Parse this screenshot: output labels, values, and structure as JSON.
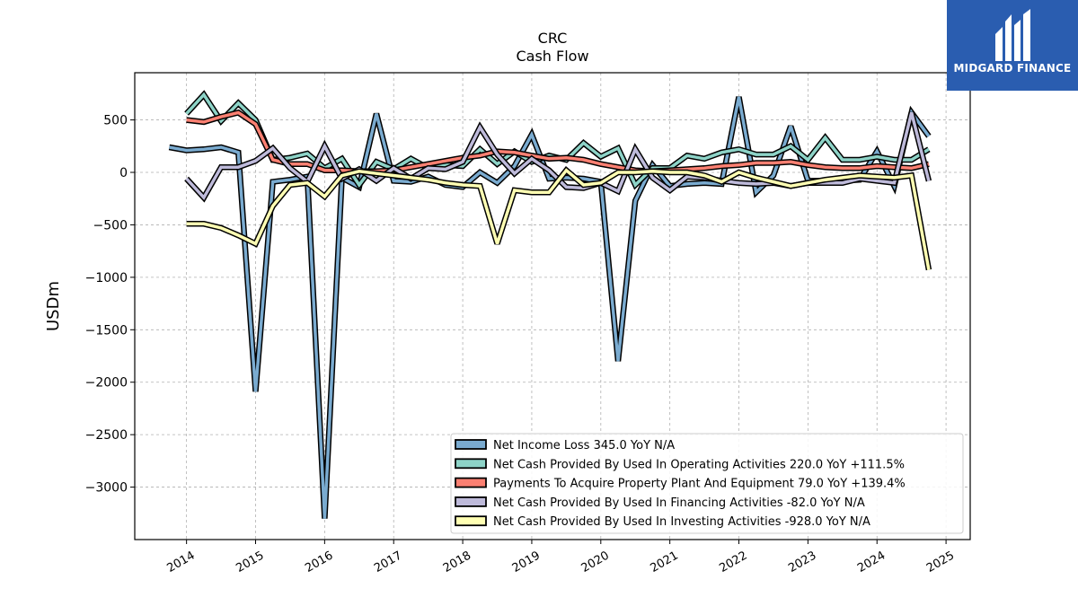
{
  "chart_data": {
    "type": "line",
    "title": "CRC",
    "subtitle": "Cash Flow",
    "xlabel": "",
    "ylabel": "USDm",
    "xlim": [
      2013.25,
      2025.35
    ],
    "ylim": [
      -3500,
      950
    ],
    "grid": true,
    "legend_placement": "lower-right",
    "x_ticks": [
      "2014",
      "2015",
      "2016",
      "2017",
      "2018",
      "2019",
      "2020",
      "2021",
      "2022",
      "2023",
      "2024",
      "2025"
    ],
    "y_ticks": [
      500,
      0,
      -500,
      -1000,
      -1500,
      -2000,
      -2500,
      -3000
    ],
    "y_tick_labels": [
      "500",
      "0",
      "−500",
      "−1000",
      "−1500",
      "−2000",
      "−2500",
      "−3000"
    ],
    "series": [
      {
        "name": "Net Income Loss  345.0 YoY N/A",
        "color": "#7aabd0",
        "x": [
          2013.75,
          2014.0,
          2014.25,
          2014.5,
          2014.75,
          2015.0,
          2015.25,
          2015.5,
          2015.75,
          2016.0,
          2016.25,
          2016.5,
          2016.75,
          2017.0,
          2017.25,
          2017.5,
          2017.75,
          2018.0,
          2018.25,
          2018.5,
          2018.75,
          2019.0,
          2019.25,
          2019.5,
          2019.75,
          2020.0,
          2020.25,
          2020.5,
          2020.75,
          2021.0,
          2021.25,
          2021.5,
          2021.75,
          2022.0,
          2022.25,
          2022.5,
          2022.75,
          2023.0,
          2023.25,
          2023.5,
          2023.75,
          2024.0,
          2024.25,
          2024.5,
          2024.75
        ],
        "values": [
          240,
          210,
          220,
          240,
          190,
          -2090,
          -90,
          -70,
          -40,
          -3300,
          -50,
          -140,
          560,
          -80,
          -90,
          -40,
          -120,
          -140,
          0,
          -100,
          60,
          360,
          -60,
          -50,
          -60,
          -90,
          -1800,
          -270,
          70,
          -130,
          -110,
          -100,
          -110,
          720,
          -190,
          -30,
          440,
          -80,
          -80,
          -80,
          -70,
          200,
          -130,
          570,
          345
        ]
      },
      {
        "name": "Net Cash Provided By Used In Operating Activities  220.0 YoY +111.5%",
        "color": "#8dd3c7",
        "x": [
          2014.0,
          2014.25,
          2014.5,
          2014.75,
          2015.0,
          2015.25,
          2015.5,
          2015.75,
          2016.0,
          2016.25,
          2016.5,
          2016.75,
          2017.0,
          2017.25,
          2017.5,
          2017.75,
          2018.0,
          2018.25,
          2018.5,
          2018.75,
          2019.0,
          2019.25,
          2019.5,
          2019.75,
          2020.0,
          2020.25,
          2020.5,
          2020.75,
          2021.0,
          2021.25,
          2021.5,
          2021.75,
          2022.0,
          2022.25,
          2022.5,
          2022.75,
          2023.0,
          2023.25,
          2023.5,
          2023.75,
          2024.0,
          2024.25,
          2024.5,
          2024.75
        ],
        "values": [
          560,
          740,
          490,
          660,
          500,
          120,
          140,
          180,
          40,
          130,
          -120,
          100,
          30,
          130,
          40,
          70,
          60,
          220,
          80,
          200,
          100,
          160,
          120,
          280,
          150,
          230,
          -120,
          40,
          40,
          160,
          130,
          190,
          220,
          170,
          170,
          250,
          120,
          330,
          120,
          120,
          150,
          120,
          120,
          220
        ]
      },
      {
        "name": "Payments To Acquire Property Plant And Equipment  79.0 YoY +139.4%",
        "color": "#fb8072",
        "x": [
          2014.0,
          2014.25,
          2014.5,
          2014.75,
          2015.0,
          2015.25,
          2015.5,
          2015.75,
          2016.0,
          2016.25,
          2016.5,
          2016.75,
          2017.0,
          2017.25,
          2017.5,
          2017.75,
          2018.0,
          2018.25,
          2018.5,
          2018.75,
          2019.0,
          2019.25,
          2019.5,
          2019.75,
          2020.0,
          2020.25,
          2020.5,
          2020.75,
          2021.0,
          2021.25,
          2021.5,
          2021.75,
          2022.0,
          2022.25,
          2022.5,
          2022.75,
          2023.0,
          2023.25,
          2023.5,
          2023.75,
          2024.0,
          2024.25,
          2024.5,
          2024.75
        ],
        "values": [
          500,
          480,
          530,
          570,
          460,
          120,
          80,
          80,
          20,
          20,
          10,
          10,
          20,
          50,
          80,
          110,
          140,
          160,
          200,
          190,
          160,
          130,
          140,
          120,
          80,
          50,
          20,
          10,
          20,
          30,
          40,
          60,
          70,
          90,
          90,
          100,
          70,
          50,
          40,
          40,
          60,
          50,
          40,
          79
        ]
      },
      {
        "name": "Net Cash Provided By Used In Financing Activities  -82.0 YoY N/A",
        "color": "#bebada",
        "x": [
          2014.0,
          2014.25,
          2014.5,
          2014.75,
          2015.0,
          2015.25,
          2015.5,
          2015.75,
          2016.0,
          2016.25,
          2016.5,
          2016.75,
          2017.0,
          2017.25,
          2017.5,
          2017.75,
          2018.0,
          2018.25,
          2018.5,
          2018.75,
          2019.0,
          2019.25,
          2019.5,
          2019.75,
          2020.0,
          2020.25,
          2020.5,
          2020.75,
          2021.0,
          2021.25,
          2021.5,
          2021.75,
          2022.0,
          2022.25,
          2022.5,
          2022.75,
          2023.0,
          2023.25,
          2023.5,
          2023.75,
          2024.0,
          2024.25,
          2024.5,
          2024.75
        ],
        "values": [
          -60,
          -240,
          50,
          50,
          110,
          230,
          40,
          -90,
          250,
          -60,
          30,
          -80,
          40,
          -60,
          40,
          30,
          100,
          430,
          170,
          -10,
          130,
          20,
          -140,
          -150,
          -100,
          -180,
          220,
          -50,
          -170,
          -40,
          -50,
          -80,
          -100,
          -110,
          -100,
          -130,
          -100,
          -100,
          -100,
          -60,
          -80,
          -100,
          570,
          -82
        ]
      },
      {
        "name": "Net Cash Provided By Used In Investing Activities  -928.0 YoY N/A",
        "color": "#ffffb3",
        "x": [
          2014.0,
          2014.25,
          2014.5,
          2014.75,
          2015.0,
          2015.25,
          2015.5,
          2015.75,
          2016.0,
          2016.25,
          2016.5,
          2016.75,
          2017.0,
          2017.25,
          2017.5,
          2017.75,
          2018.0,
          2018.25,
          2018.5,
          2018.75,
          2019.0,
          2019.25,
          2019.5,
          2019.75,
          2020.0,
          2020.25,
          2020.5,
          2020.75,
          2021.0,
          2021.25,
          2021.5,
          2021.75,
          2022.0,
          2022.25,
          2022.5,
          2022.75,
          2023.0,
          2023.25,
          2023.5,
          2023.75,
          2024.0,
          2024.25,
          2024.5,
          2024.75
        ],
        "values": [
          -490,
          -490,
          -530,
          -600,
          -680,
          -320,
          -120,
          -100,
          -230,
          -30,
          10,
          -10,
          -30,
          -50,
          -70,
          -100,
          -120,
          -130,
          -680,
          -170,
          -190,
          -190,
          20,
          -120,
          -100,
          0,
          0,
          10,
          0,
          0,
          -30,
          -90,
          0,
          -50,
          -90,
          -130,
          -100,
          -70,
          -50,
          -30,
          -40,
          -50,
          -30,
          -928
        ]
      }
    ]
  },
  "logo": {
    "name": "MIDGARD FINANCE"
  }
}
